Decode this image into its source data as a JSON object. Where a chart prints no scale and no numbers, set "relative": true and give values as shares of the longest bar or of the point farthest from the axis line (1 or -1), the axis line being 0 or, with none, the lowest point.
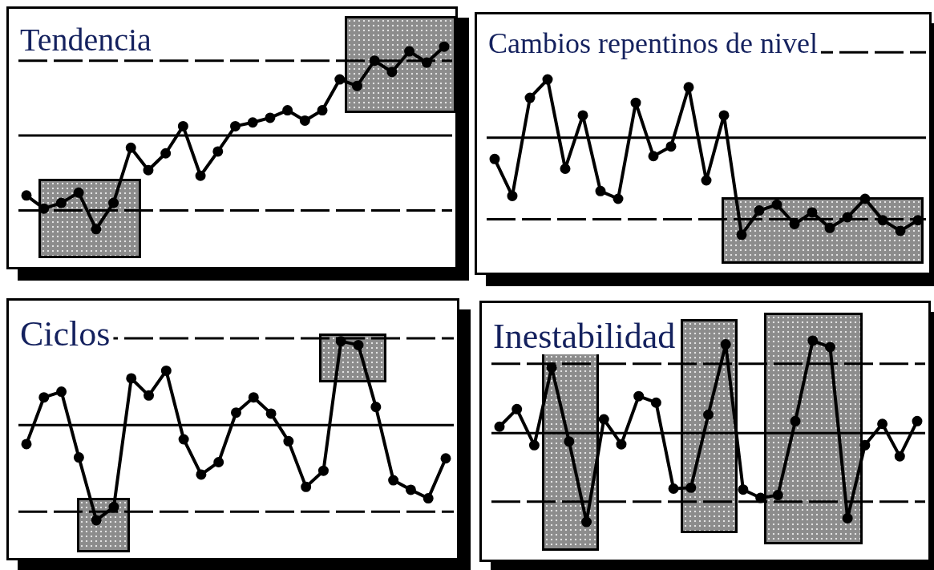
{
  "chart_data": [
    {
      "type": "line",
      "title": "Tendencia",
      "relative": true,
      "marker": "circle",
      "categories": [
        null,
        null,
        null,
        null,
        null,
        null,
        null,
        null,
        null,
        null,
        null,
        null,
        null,
        null,
        null,
        null,
        null,
        null,
        null,
        null,
        null,
        null,
        null,
        null,
        null
      ],
      "series": [
        {
          "color": "#000000",
          "values": [
            -0.64,
            -0.78,
            -0.72,
            -0.61,
            -1,
            -0.72,
            -0.13,
            -0.37,
            -0.19,
            0.1,
            -0.43,
            -0.17,
            0.1,
            0.14,
            0.19,
            0.27,
            0.16,
            0.27,
            0.6,
            0.53,
            0.8,
            0.68,
            0.9,
            0.78,
            0.95
          ]
        }
      ],
      "ref_lines": [
        {
          "axis": "y",
          "value": 0.8,
          "line_style": "dashed",
          "color": "#000000"
        },
        {
          "axis": "y",
          "value": 0,
          "line_style": "solid",
          "color": "#000000"
        },
        {
          "axis": "y",
          "value": -0.8,
          "line_style": "dashed",
          "color": "#000000"
        }
      ]
    },
    {
      "type": "line",
      "title": "Cambios repentinos de nivel",
      "relative": true,
      "marker": "circle",
      "categories": [
        null,
        null,
        null,
        null,
        null,
        null,
        null,
        null,
        null,
        null,
        null,
        null,
        null,
        null,
        null,
        null,
        null,
        null,
        null,
        null,
        null,
        null,
        null,
        null,
        null
      ],
      "series": [
        {
          "color": "#000000",
          "values": [
            -0.22,
            -0.6,
            0.41,
            0.6,
            -0.32,
            0.23,
            -0.55,
            -0.63,
            0.36,
            -0.19,
            -0.09,
            0.52,
            -0.44,
            0.23,
            -1,
            -0.75,
            -0.69,
            -0.89,
            -0.77,
            -0.93,
            -0.82,
            -0.63,
            -0.85,
            -0.96,
            -0.85
          ]
        }
      ],
      "ref_lines": [
        {
          "axis": "y",
          "value": 0.88,
          "line_style": "dashed",
          "color": "#000000"
        },
        {
          "axis": "y",
          "value": 0,
          "line_style": "solid",
          "color": "#000000"
        },
        {
          "axis": "y",
          "value": -0.84,
          "line_style": "dashed",
          "color": "#000000"
        }
      ]
    },
    {
      "type": "line",
      "title": "Ciclos",
      "relative": true,
      "marker": "circle",
      "categories": [
        null,
        null,
        null,
        null,
        null,
        null,
        null,
        null,
        null,
        null,
        null,
        null,
        null,
        null,
        null,
        null,
        null,
        null,
        null,
        null,
        null,
        null,
        null,
        null,
        null
      ],
      "series": [
        {
          "color": "#000000",
          "values": [
            -0.2,
            0.29,
            0.35,
            -0.34,
            -1,
            -0.86,
            0.49,
            0.31,
            0.57,
            -0.15,
            -0.52,
            -0.39,
            0.13,
            0.29,
            0.12,
            -0.17,
            -0.65,
            -0.48,
            0.88,
            0.84,
            0.19,
            -0.58,
            -0.68,
            -0.77,
            -0.35
          ]
        }
      ],
      "ref_lines": [
        {
          "axis": "y",
          "value": 0.91,
          "line_style": "dashed",
          "color": "#000000"
        },
        {
          "axis": "y",
          "value": 0,
          "line_style": "solid",
          "color": "#000000"
        },
        {
          "axis": "y",
          "value": -0.91,
          "line_style": "dashed",
          "color": "#000000"
        }
      ]
    },
    {
      "type": "line",
      "title": "Inestabilidad",
      "relative": true,
      "marker": "circle",
      "categories": [
        null,
        null,
        null,
        null,
        null,
        null,
        null,
        null,
        null,
        null,
        null,
        null,
        null,
        null,
        null,
        null,
        null,
        null,
        null,
        null,
        null,
        null,
        null,
        null,
        null
      ],
      "series": [
        {
          "color": "#000000",
          "values": [
            0.07,
            0.26,
            -0.13,
            0.71,
            -0.09,
            -0.96,
            0.15,
            -0.12,
            0.4,
            0.33,
            -0.6,
            -0.59,
            0.2,
            0.96,
            -0.61,
            -0.7,
            -0.67,
            0.13,
            1,
            0.93,
            -0.92,
            -0.13,
            0.1,
            -0.25,
            0.13
          ]
        }
      ],
      "ref_lines": [
        {
          "axis": "y",
          "value": 0.75,
          "line_style": "dashed",
          "color": "#000000"
        },
        {
          "axis": "y",
          "value": 0,
          "line_style": "solid",
          "color": "#000000"
        },
        {
          "axis": "y",
          "value": -0.74,
          "line_style": "dashed",
          "color": "#000000"
        }
      ]
    }
  ]
}
